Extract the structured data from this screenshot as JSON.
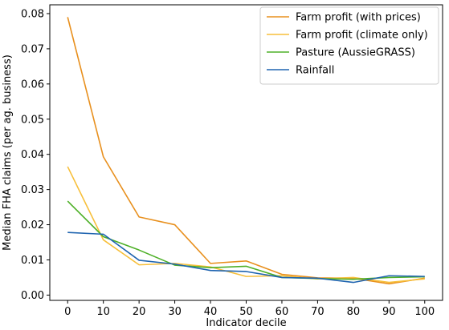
{
  "chart_data": {
    "type": "line",
    "xlabel": "Indicator decile",
    "ylabel": "Median FHA claims (per ag. business)",
    "xlim": [
      -5,
      105
    ],
    "ylim": [
      -0.0015,
      0.0825
    ],
    "x_ticks": [
      0,
      10,
      20,
      30,
      40,
      50,
      60,
      70,
      80,
      90,
      100
    ],
    "y_ticks": [
      0.0,
      0.01,
      0.02,
      0.03,
      0.04,
      0.05,
      0.06,
      0.07,
      0.08
    ],
    "y_tick_labels": [
      "0.00",
      "0.01",
      "0.02",
      "0.03",
      "0.04",
      "0.05",
      "0.06",
      "0.07",
      "0.08"
    ],
    "grid": false,
    "legend_position": "top-right",
    "x": [
      0,
      10,
      20,
      30,
      40,
      50,
      60,
      70,
      80,
      90,
      100
    ],
    "series": [
      {
        "name": "Farm profit (with prices)",
        "color": "#e8901e",
        "values": [
          0.079,
          0.0393,
          0.0222,
          0.02,
          0.009,
          0.0097,
          0.0059,
          0.0049,
          0.0048,
          0.0032,
          0.0048
        ]
      },
      {
        "name": "Farm profit (climate only)",
        "color": "#f7bf3a",
        "values": [
          0.0365,
          0.0157,
          0.0086,
          0.009,
          0.008,
          0.0053,
          0.0055,
          0.0046,
          0.005,
          0.0036,
          0.0046
        ]
      },
      {
        "name": "Pasture (AussieGRASS)",
        "color": "#4eb028",
        "values": [
          0.0267,
          0.0166,
          0.0128,
          0.0085,
          0.0078,
          0.0082,
          0.005,
          0.0047,
          0.0045,
          0.005,
          0.0052
        ]
      },
      {
        "name": "Rainfall",
        "color": "#1f64b0",
        "values": [
          0.0178,
          0.0173,
          0.0099,
          0.0088,
          0.007,
          0.0067,
          0.005,
          0.0048,
          0.0036,
          0.0055,
          0.0053
        ]
      }
    ]
  }
}
